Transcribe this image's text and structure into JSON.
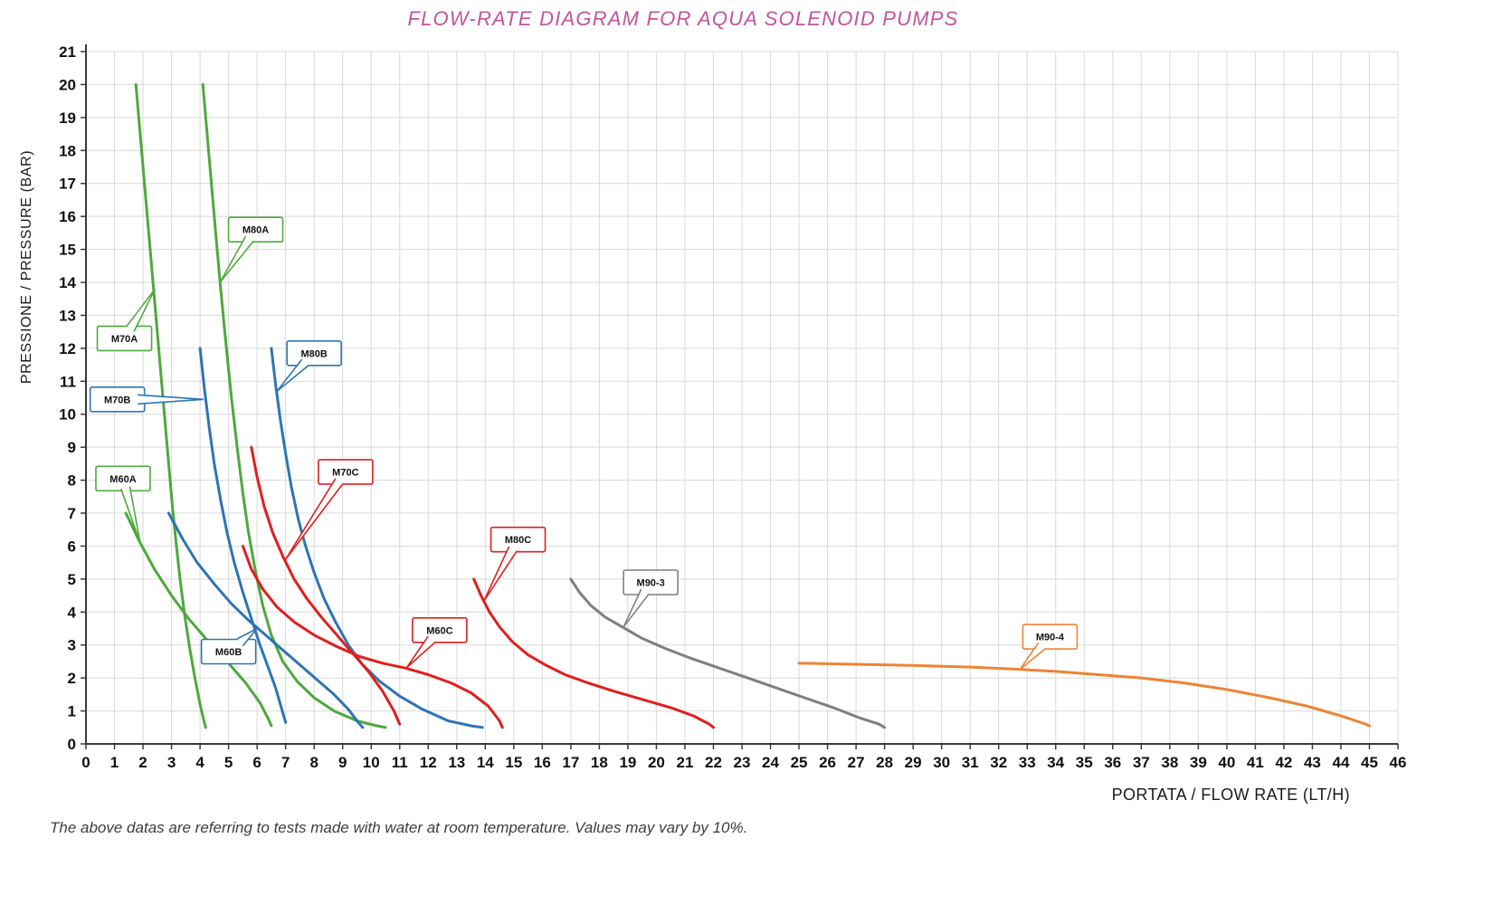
{
  "page": {
    "note": "The above datas are referring to tests made with water at room temperature. Values may vary by 10%."
  },
  "chart_data": {
    "type": "line",
    "title": "FLOW-RATE DIAGRAM FOR AQUA SOLENOID PUMPS",
    "xlabel": "PORTATA / FLOW RATE (LT/H)",
    "ylabel": "PRESSIONE / PRESSURE (BAR)",
    "xlim": [
      0,
      46
    ],
    "ylim": [
      0,
      21
    ],
    "x_tick_step": 1,
    "y_tick_step": 1,
    "grid": true,
    "grid_color": "#d9d9d9",
    "axis_color": "#3a3a3a",
    "tick_label_color": "#111111",
    "title_color": "#c2549c",
    "legend_position": "callout-labels-on-curves",
    "x_ticks": [
      0,
      1,
      2,
      3,
      4,
      5,
      6,
      7,
      8,
      9,
      10,
      11,
      12,
      13,
      14,
      15,
      16,
      17,
      18,
      19,
      20,
      21,
      22,
      23,
      24,
      25,
      26,
      27,
      28,
      29,
      30,
      31,
      32,
      33,
      34,
      35,
      36,
      37,
      38,
      39,
      40,
      41,
      42,
      43,
      44,
      45,
      46
    ],
    "y_ticks": [
      0,
      1,
      2,
      3,
      4,
      5,
      6,
      7,
      8,
      9,
      10,
      11,
      12,
      13,
      14,
      15,
      16,
      17,
      18,
      19,
      20,
      21
    ],
    "series": [
      {
        "name": "M60A",
        "color": "#4fa83d",
        "points": [
          [
            1.4,
            7.0
          ],
          [
            1.9,
            6.1
          ],
          [
            2.4,
            5.3
          ],
          [
            3.0,
            4.5
          ],
          [
            3.6,
            3.8
          ],
          [
            4.3,
            3.1
          ],
          [
            5.0,
            2.45
          ],
          [
            5.6,
            1.85
          ],
          [
            6.1,
            1.25
          ],
          [
            6.4,
            0.75
          ],
          [
            6.5,
            0.55
          ]
        ],
        "label": {
          "cx": 1.3,
          "cy": 8.05,
          "ax": 1.9,
          "ay": 6.1
        }
      },
      {
        "name": "M70A",
        "color": "#4fa83d",
        "points": [
          [
            1.75,
            20
          ],
          [
            1.95,
            18
          ],
          [
            2.15,
            16
          ],
          [
            2.35,
            14
          ],
          [
            2.55,
            12
          ],
          [
            2.72,
            10.3
          ],
          [
            2.88,
            8.7
          ],
          [
            3.02,
            7.3
          ],
          [
            3.16,
            6.1
          ],
          [
            3.3,
            5.0
          ],
          [
            3.46,
            3.9
          ],
          [
            3.64,
            2.9
          ],
          [
            3.82,
            2.0
          ],
          [
            4.0,
            1.2
          ],
          [
            4.15,
            0.65
          ],
          [
            4.2,
            0.5
          ]
        ],
        "label": {
          "cx": 1.35,
          "cy": 12.3,
          "ax": 2.42,
          "ay": 13.8
        }
      },
      {
        "name": "M80A",
        "color": "#4fa83d",
        "points": [
          [
            4.1,
            20
          ],
          [
            4.3,
            18
          ],
          [
            4.5,
            16
          ],
          [
            4.7,
            14
          ],
          [
            4.9,
            12.2
          ],
          [
            5.1,
            10.5
          ],
          [
            5.3,
            9.0
          ],
          [
            5.5,
            7.6
          ],
          [
            5.7,
            6.4
          ],
          [
            5.95,
            5.2
          ],
          [
            6.2,
            4.2
          ],
          [
            6.5,
            3.3
          ],
          [
            6.9,
            2.5
          ],
          [
            7.4,
            1.9
          ],
          [
            8.0,
            1.4
          ],
          [
            8.7,
            1.0
          ],
          [
            9.5,
            0.7
          ],
          [
            10.2,
            0.55
          ],
          [
            10.5,
            0.5
          ]
        ],
        "label": {
          "cx": 5.95,
          "cy": 15.6,
          "ax": 4.7,
          "ay": 14.0
        }
      },
      {
        "name": "M60B",
        "color": "#2e74b5",
        "points": [
          [
            2.9,
            7.0
          ],
          [
            3.4,
            6.2
          ],
          [
            3.9,
            5.5
          ],
          [
            4.5,
            4.85
          ],
          [
            5.1,
            4.25
          ],
          [
            5.7,
            3.75
          ],
          [
            6.3,
            3.3
          ],
          [
            6.9,
            2.85
          ],
          [
            7.5,
            2.4
          ],
          [
            8.1,
            1.95
          ],
          [
            8.7,
            1.5
          ],
          [
            9.2,
            1.05
          ],
          [
            9.55,
            0.65
          ],
          [
            9.7,
            0.5
          ]
        ],
        "label": {
          "cx": 5.0,
          "cy": 2.8,
          "ax": 6.0,
          "ay": 3.5
        }
      },
      {
        "name": "M70B",
        "color": "#2e74b5",
        "points": [
          [
            4.0,
            12
          ],
          [
            4.15,
            10.8
          ],
          [
            4.32,
            9.6
          ],
          [
            4.5,
            8.5
          ],
          [
            4.72,
            7.4
          ],
          [
            4.95,
            6.4
          ],
          [
            5.2,
            5.5
          ],
          [
            5.5,
            4.6
          ],
          [
            5.8,
            3.8
          ],
          [
            6.1,
            3.0
          ],
          [
            6.4,
            2.3
          ],
          [
            6.65,
            1.7
          ],
          [
            6.85,
            1.1
          ],
          [
            7.0,
            0.65
          ]
        ],
        "label": {
          "cx": 1.1,
          "cy": 10.45,
          "ax": 4.12,
          "ay": 10.45
        }
      },
      {
        "name": "M80B",
        "color": "#2e74b5",
        "points": [
          [
            6.5,
            12
          ],
          [
            6.65,
            10.9
          ],
          [
            6.82,
            9.8
          ],
          [
            7.0,
            8.8
          ],
          [
            7.2,
            7.8
          ],
          [
            7.45,
            6.8
          ],
          [
            7.7,
            6.0
          ],
          [
            8.0,
            5.2
          ],
          [
            8.35,
            4.4
          ],
          [
            8.75,
            3.7
          ],
          [
            9.2,
            3.0
          ],
          [
            9.7,
            2.4
          ],
          [
            10.3,
            1.9
          ],
          [
            11.0,
            1.45
          ],
          [
            11.8,
            1.05
          ],
          [
            12.7,
            0.7
          ],
          [
            13.5,
            0.55
          ],
          [
            13.9,
            0.5
          ]
        ],
        "label": {
          "cx": 8.0,
          "cy": 11.85,
          "ax": 6.7,
          "ay": 10.7
        }
      },
      {
        "name": "M60C",
        "color": "#e01e1e",
        "points": [
          [
            5.5,
            6.0
          ],
          [
            5.8,
            5.3
          ],
          [
            6.2,
            4.7
          ],
          [
            6.7,
            4.15
          ],
          [
            7.3,
            3.7
          ],
          [
            8.0,
            3.3
          ],
          [
            8.8,
            2.95
          ],
          [
            9.6,
            2.65
          ],
          [
            10.4,
            2.45
          ],
          [
            11.2,
            2.3
          ],
          [
            12.0,
            2.1
          ],
          [
            12.8,
            1.85
          ],
          [
            13.5,
            1.55
          ],
          [
            14.1,
            1.15
          ],
          [
            14.5,
            0.7
          ],
          [
            14.6,
            0.5
          ]
        ],
        "label": {
          "cx": 12.4,
          "cy": 3.45,
          "ax": 11.25,
          "ay": 2.32
        }
      },
      {
        "name": "M70C",
        "color": "#e01e1e",
        "points": [
          [
            5.8,
            9.0
          ],
          [
            6.0,
            8.1
          ],
          [
            6.25,
            7.2
          ],
          [
            6.55,
            6.4
          ],
          [
            6.9,
            5.7
          ],
          [
            7.3,
            5.0
          ],
          [
            7.75,
            4.4
          ],
          [
            8.25,
            3.85
          ],
          [
            8.8,
            3.3
          ],
          [
            9.35,
            2.75
          ],
          [
            9.9,
            2.2
          ],
          [
            10.4,
            1.6
          ],
          [
            10.8,
            1.0
          ],
          [
            11.0,
            0.6
          ]
        ],
        "label": {
          "cx": 9.1,
          "cy": 8.25,
          "ax": 7.0,
          "ay": 5.6
        }
      },
      {
        "name": "M80C",
        "color": "#e01e1e",
        "points": [
          [
            13.6,
            5.0
          ],
          [
            13.85,
            4.5
          ],
          [
            14.15,
            4.0
          ],
          [
            14.5,
            3.55
          ],
          [
            14.95,
            3.1
          ],
          [
            15.5,
            2.7
          ],
          [
            16.1,
            2.4
          ],
          [
            16.8,
            2.1
          ],
          [
            17.6,
            1.85
          ],
          [
            18.5,
            1.6
          ],
          [
            19.5,
            1.35
          ],
          [
            20.5,
            1.1
          ],
          [
            21.3,
            0.85
          ],
          [
            21.85,
            0.6
          ],
          [
            22.0,
            0.5
          ]
        ],
        "label": {
          "cx": 15.15,
          "cy": 6.2,
          "ax": 13.95,
          "ay": 4.33
        }
      },
      {
        "name": "M90-3",
        "color": "#7f7f7f",
        "points": [
          [
            17.0,
            5.0
          ],
          [
            17.3,
            4.6
          ],
          [
            17.7,
            4.2
          ],
          [
            18.2,
            3.85
          ],
          [
            18.8,
            3.55
          ],
          [
            19.5,
            3.2
          ],
          [
            20.3,
            2.9
          ],
          [
            21.2,
            2.6
          ],
          [
            22.2,
            2.3
          ],
          [
            23.2,
            2.0
          ],
          [
            24.2,
            1.7
          ],
          [
            25.2,
            1.4
          ],
          [
            26.2,
            1.1
          ],
          [
            27.1,
            0.8
          ],
          [
            27.8,
            0.6
          ],
          [
            28.0,
            0.5
          ]
        ],
        "label": {
          "cx": 19.8,
          "cy": 4.9,
          "ax": 18.85,
          "ay": 3.55
        }
      },
      {
        "name": "M90-4",
        "color": "#ee8434",
        "points": [
          [
            25.0,
            2.45
          ],
          [
            26.5,
            2.42
          ],
          [
            28.0,
            2.4
          ],
          [
            29.5,
            2.37
          ],
          [
            31.0,
            2.33
          ],
          [
            32.5,
            2.27
          ],
          [
            34.0,
            2.2
          ],
          [
            35.5,
            2.1
          ],
          [
            37.0,
            2.0
          ],
          [
            38.5,
            1.85
          ],
          [
            40.0,
            1.65
          ],
          [
            41.5,
            1.4
          ],
          [
            42.8,
            1.15
          ],
          [
            44.0,
            0.85
          ],
          [
            44.8,
            0.62
          ],
          [
            45.0,
            0.55
          ]
        ],
        "label": {
          "cx": 33.8,
          "cy": 3.25,
          "ax": 32.75,
          "ay": 2.26
        }
      }
    ]
  }
}
